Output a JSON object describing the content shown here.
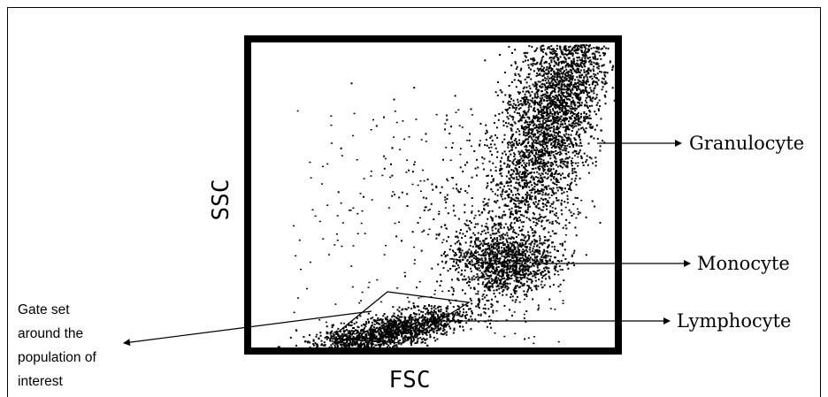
{
  "axes": {
    "x_label": "FSC",
    "y_label": "SSC"
  },
  "populations": [
    {
      "key": "granulocyte",
      "label": "Granulocyte"
    },
    {
      "key": "monocyte",
      "label": "Monocyte"
    },
    {
      "key": "lymphocyte",
      "label": "Lymphocyte"
    }
  ],
  "gate_note": {
    "lines": [
      "Gate set",
      "around the",
      "population of",
      "interest"
    ]
  },
  "colors": {
    "ink": "#000000",
    "background": "#ffffff"
  }
}
